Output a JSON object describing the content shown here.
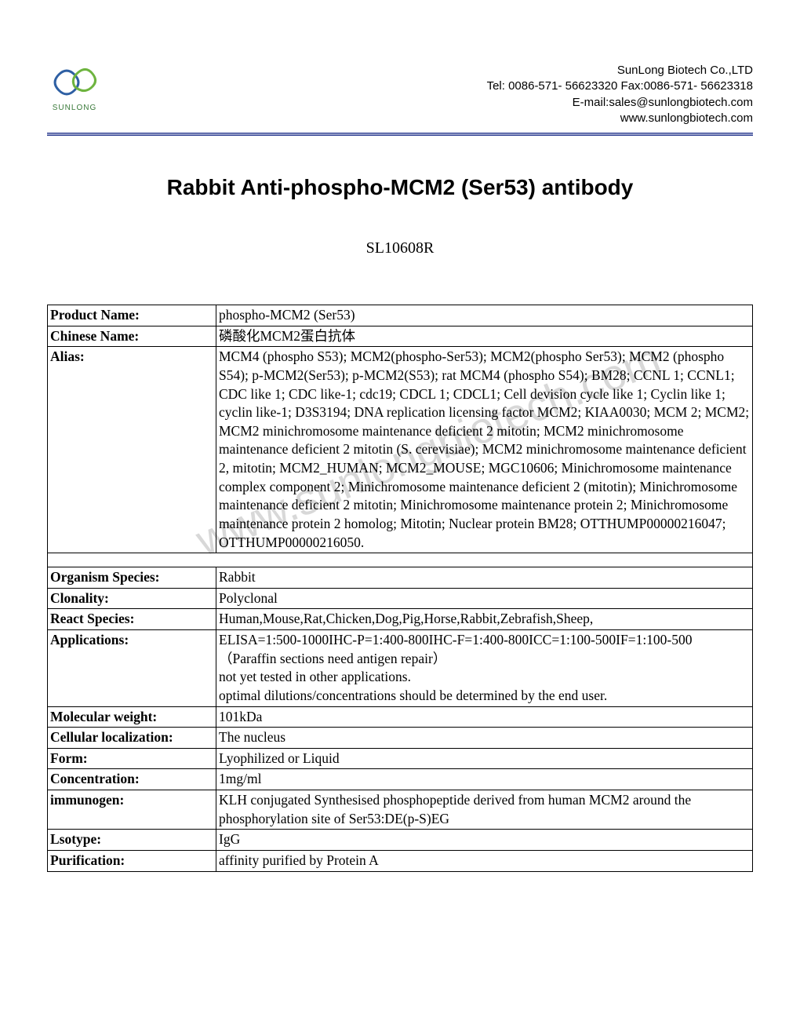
{
  "header": {
    "logo_label": "SUNLONG",
    "company_name": "SunLong Biotech Co.,LTD",
    "tel_fax": "Tel: 0086-571- 56623320 Fax:0086-571- 56623318",
    "email": "E-mail:sales@sunlongbiotech.com",
    "website": "www.sunlongbiotech.com"
  },
  "title": "Rabbit Anti-phospho-MCM2 (Ser53) antibody",
  "product_code": "SL10608R",
  "watermark": "www.sunlongbiotech.com",
  "table": {
    "rows": [
      {
        "label": "Product Name:",
        "value": "phospho-MCM2 (Ser53)"
      },
      {
        "label": "Chinese Name:",
        "value": "磷酸化MCM2蛋白抗体"
      },
      {
        "label": "Alias:",
        "value": "MCM4 (phospho S53); MCM2(phospho-Ser53); MCM2(phospho Ser53); MCM2 (phospho S54); p-MCM2(Ser53); p-MCM2(S53); rat MCM4 (phospho S54); BM28; CCNL 1; CCNL1; CDC like 1; CDC like-1; cdc19; CDCL 1; CDCL1; Cell devision cycle like 1; Cyclin like 1; cyclin like-1; D3S3194; DNA replication licensing factor MCM2; KIAA0030; MCM 2; MCM2; MCM2 minichromosome maintenance deficient 2 mitotin; MCM2 minichromosome maintenance deficient 2 mitotin (S. cerevisiae); MCM2 minichromosome maintenance deficient 2, mitotin; MCM2_HUMAN; MCM2_MOUSE; MGC10606; Minichromosome maintenance complex component 2; Minichromosome maintenance deficient 2 (mitotin); Minichromosome maintenance deficient 2 mitotin; Minichromosome maintenance protein 2; Minichromosome maintenance protein 2 homolog; Mitotin; Nuclear protein BM28; OTTHUMP00000216047; OTTHUMP00000216050."
      },
      {
        "spacer": true
      },
      {
        "label": "Organism Species:",
        "value": "Rabbit"
      },
      {
        "label": "Clonality:",
        "value": "Polyclonal"
      },
      {
        "label": "React Species:",
        "value": "Human,Mouse,Rat,Chicken,Dog,Pig,Horse,Rabbit,Zebrafish,Sheep,"
      },
      {
        "label": "Applications:",
        "value": "ELISA=1:500-1000IHC-P=1:400-800IHC-F=1:400-800ICC=1:100-500IF=1:100-500（Paraffin sections need antigen repair）\nnot yet tested in other applications.\noptimal dilutions/concentrations should be determined by the end user."
      },
      {
        "label": "Molecular weight:",
        "value": "101kDa"
      },
      {
        "label": "Cellular localization:",
        "value": "The nucleus"
      },
      {
        "label": "Form:",
        "value": "Lyophilized or Liquid"
      },
      {
        "label": "Concentration:",
        "value": "1mg/ml"
      },
      {
        "label": "immunogen:",
        "value": "KLH conjugated Synthesised phosphopeptide derived from human MCM2 around the phosphorylation site of Ser53:DE(p-S)EG"
      },
      {
        "label": "Lsotype:",
        "value": "IgG"
      },
      {
        "label": "Purification:",
        "value": "affinity purified by Protein A"
      }
    ]
  },
  "colors": {
    "logo_green": "#6eb43f",
    "logo_blue": "#2e5fa3",
    "divider": "#2a3b8f",
    "watermark": "#d8d8d8"
  }
}
